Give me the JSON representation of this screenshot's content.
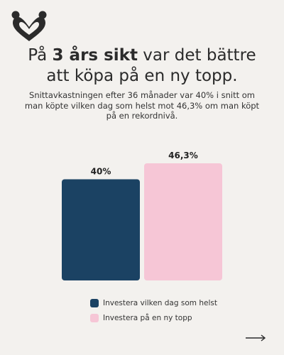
{
  "header": {
    "title_pre": "På ",
    "title_bold": "3 års sikt",
    "title_post": " var det bättre",
    "title_line2": "att köpa på en ny topp.",
    "subtitle": "Snittavkastningen efter 36 månader var 40% i snitt om man köpte vilken dag som helst mot 46,3% om man köpt på en rekordnivå."
  },
  "icons": {
    "logo": "heart-hands-logo-icon",
    "next": "arrow-right-icon"
  },
  "chart_data": {
    "type": "bar",
    "categories": [
      "Investera vilken dag som helst",
      "Investera på en ny topp"
    ],
    "values": [
      40,
      46.3
    ],
    "data_labels": [
      "40%",
      "46,3%"
    ],
    "colors": [
      "#1b4263",
      "#f6c6d6"
    ],
    "ylim": [
      0,
      46.3
    ],
    "xlabel": "",
    "ylabel": "",
    "grid": false,
    "legend_position": "bottom"
  }
}
